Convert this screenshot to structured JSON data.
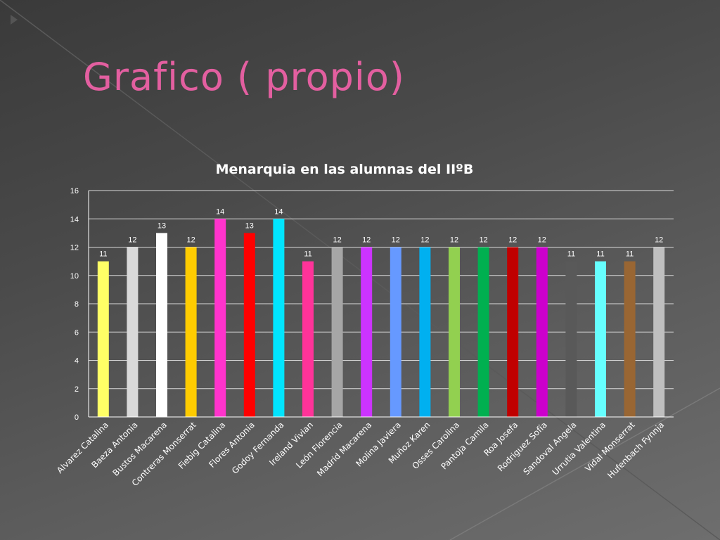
{
  "slide": {
    "title": "Grafico ( propio)",
    "title_color": "#e35fa0"
  },
  "chart_data": {
    "type": "bar",
    "title": "Menarquia en las alumnas del IIºB",
    "xlabel": "",
    "ylabel": "",
    "ylim": [
      0,
      16
    ],
    "yticks": [
      0,
      2,
      4,
      6,
      8,
      10,
      12,
      14,
      16
    ],
    "grid": true,
    "legend": "none",
    "data_labels": true,
    "categories": [
      "Alvarez Catalina",
      "Baeza Antonia",
      "Bustos Macarena",
      "Contreras Monserrat",
      "Fiebig Catalina",
      "Flores Antonia",
      "Godoy Fernanda",
      "Ireland Vivian",
      "León Florencia",
      "Madrid Macarena",
      "Molina Javiera",
      "Muñoz Karen",
      "Osses Carolina",
      "Pantoja Camila",
      "Roa Josefa",
      "Rodriguez Sofía",
      "Sandoval Angela",
      "Urrutia Valentina",
      "Vidal Monserrat",
      "Hufenbach Fynnja"
    ],
    "values": [
      11,
      12,
      13,
      12,
      14,
      13,
      14,
      11,
      12,
      12,
      12,
      12,
      12,
      12,
      12,
      12,
      11,
      11,
      11,
      12
    ],
    "colors": [
      "#ffff66",
      "#d9d9d9",
      "#ffffff",
      "#ffcc00",
      "#ff33cc",
      "#ff0000",
      "#00e5ff",
      "#ff3399",
      "#a6a6a6",
      "#cc33ff",
      "#6699ff",
      "#00b0f0",
      "#92d050",
      "#00b050",
      "#c00000",
      "#cc00cc",
      "#595959",
      "#66ffff",
      "#996633",
      "#bfbfbf"
    ]
  }
}
